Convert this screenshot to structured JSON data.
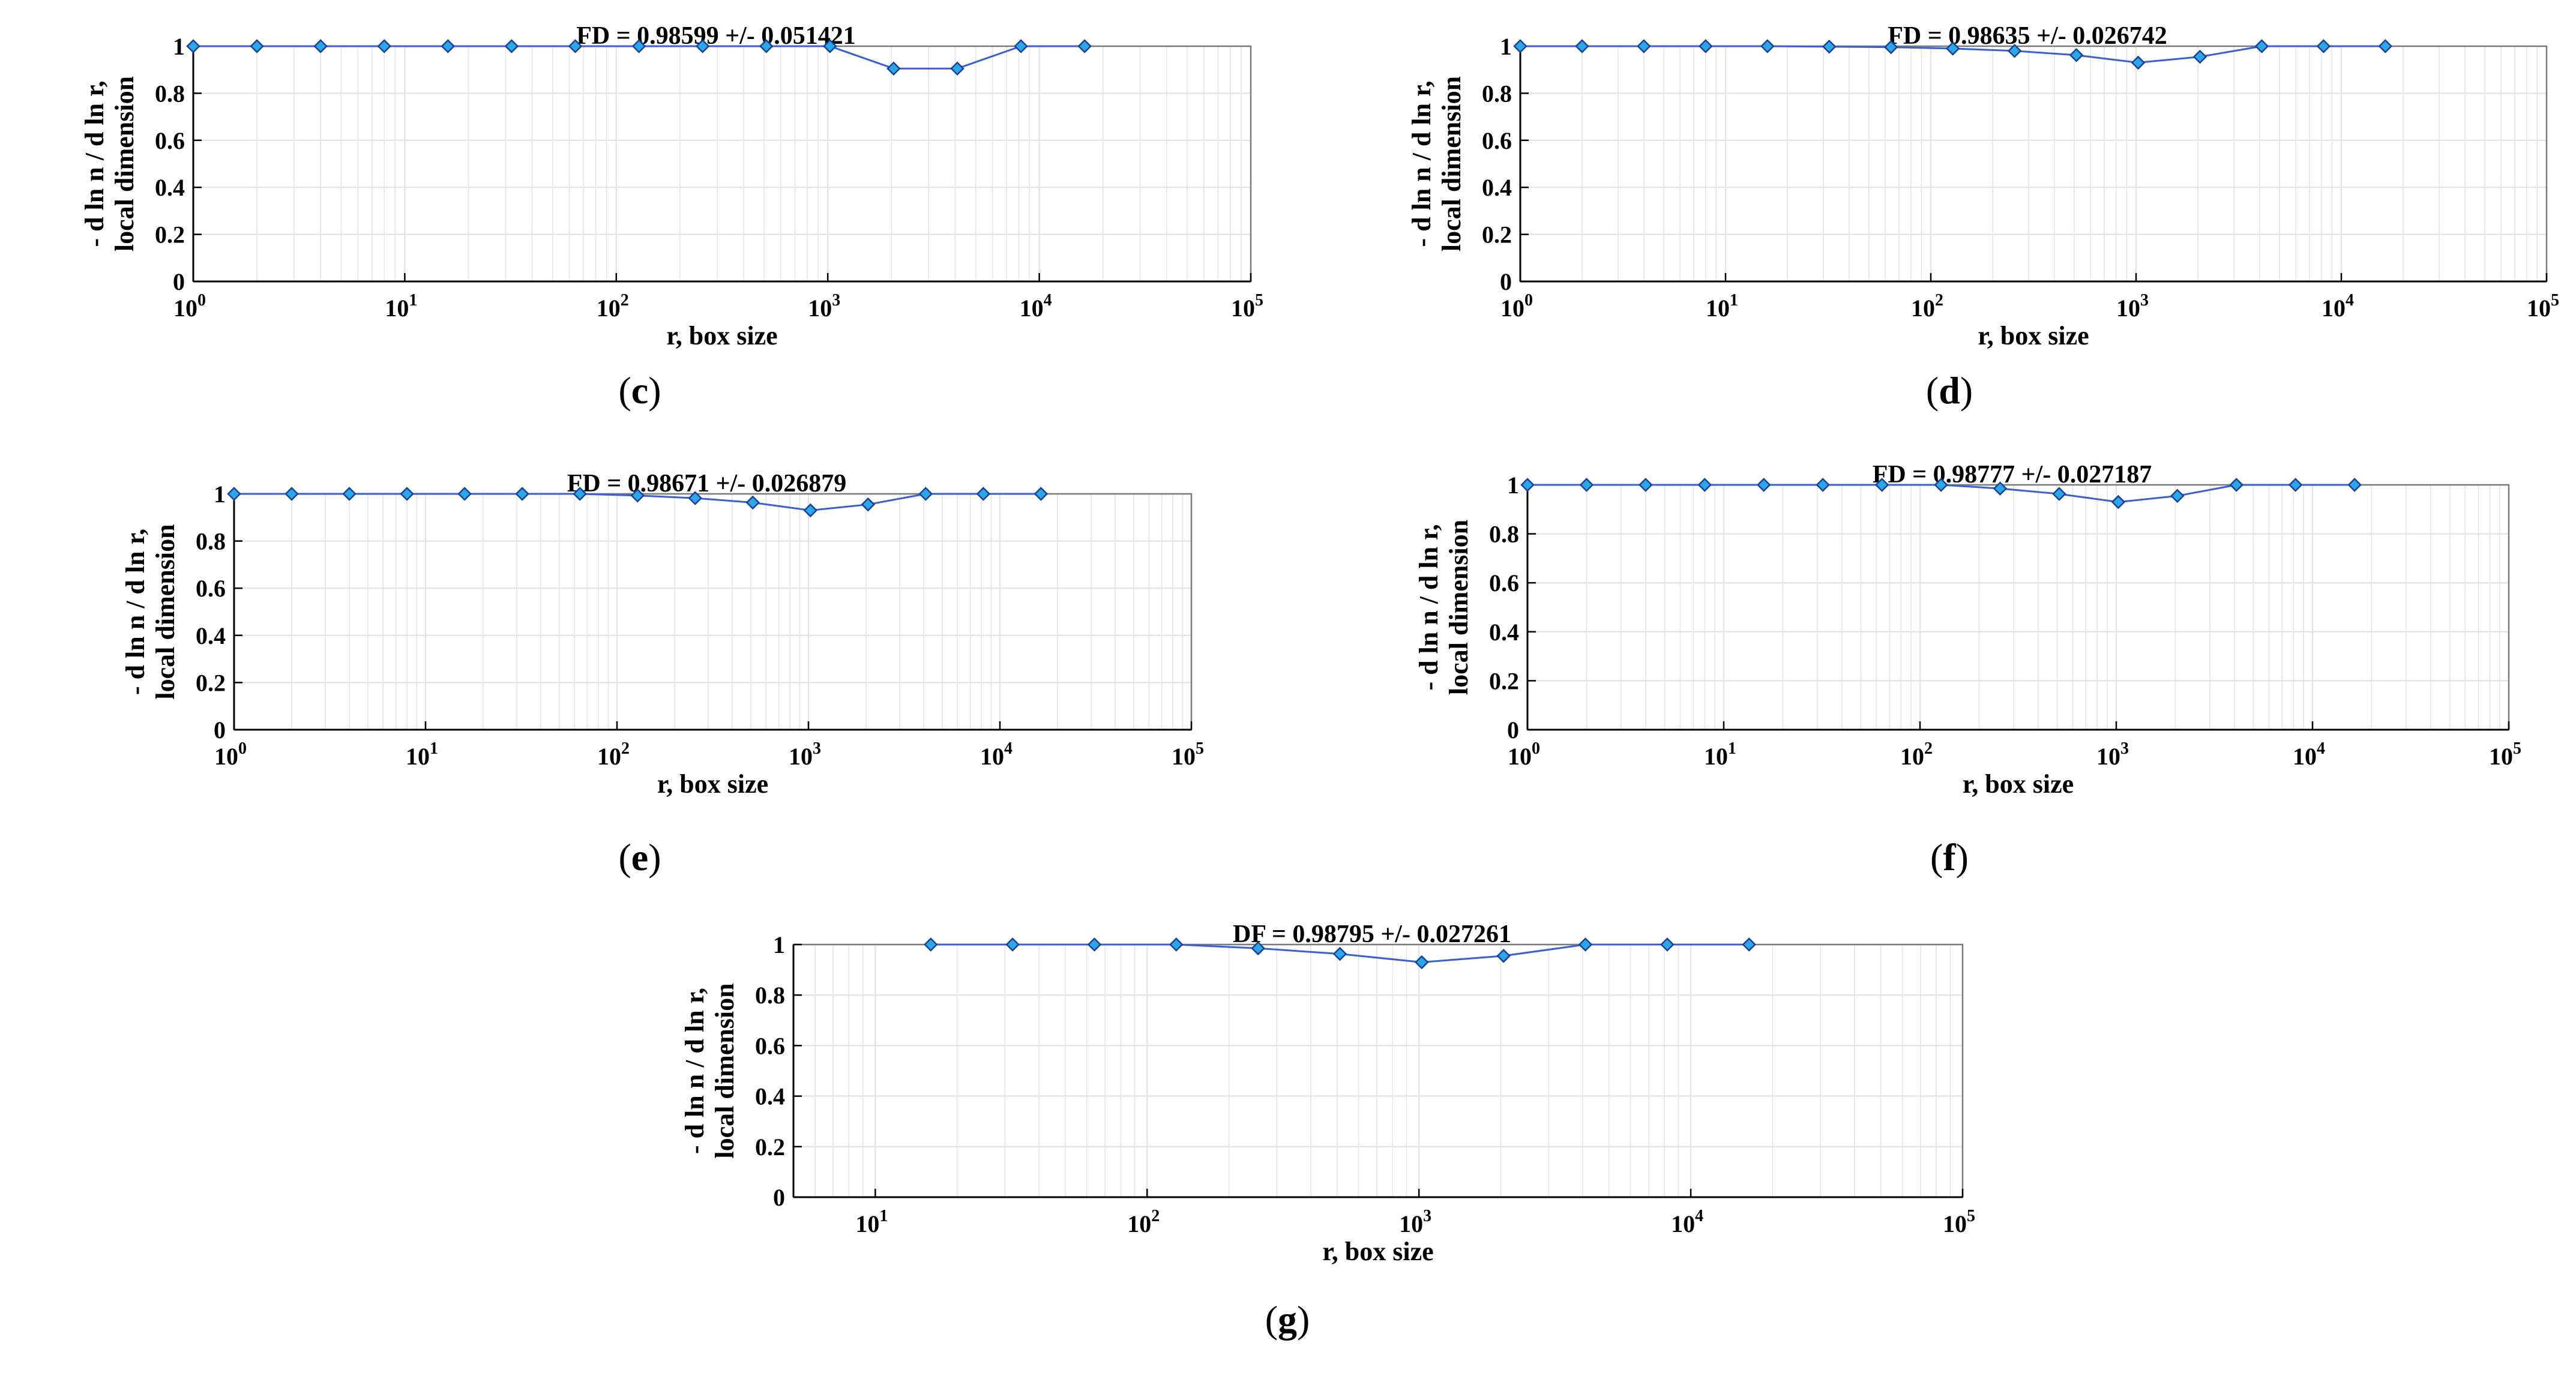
{
  "figure": {
    "panels": [
      {
        "id": "c",
        "caption_letter": "c"
      },
      {
        "id": "d",
        "caption_letter": "d"
      },
      {
        "id": "e",
        "caption_letter": "e"
      },
      {
        "id": "f",
        "caption_letter": "f"
      },
      {
        "id": "g",
        "caption_letter": "g"
      }
    ]
  },
  "colors": {
    "line": "#3a5fd4",
    "marker_fill": "#2aa7e6",
    "marker_edge": "#1a3f9a",
    "grid": "#e4e4e4",
    "axis": "#000000"
  },
  "chart_data": [
    {
      "panel": "c",
      "type": "line",
      "title": "FD = 0.98599 +/- 0.051421",
      "xlabel": "r, box size",
      "ylabel_line1": "- d ln n / d ln r,",
      "ylabel_line2": "local dimension",
      "xscale": "log",
      "xlim": [
        1,
        100000
      ],
      "ylim": [
        0,
        1
      ],
      "grid": true,
      "x_ticks": [
        {
          "base": "10",
          "exp": "0"
        },
        {
          "base": "10",
          "exp": "1"
        },
        {
          "base": "10",
          "exp": "2"
        },
        {
          "base": "10",
          "exp": "3"
        },
        {
          "base": "10",
          "exp": "4"
        },
        {
          "base": "10",
          "exp": "5"
        }
      ],
      "y_ticks": [
        "0",
        "0.2",
        "0.4",
        "0.6",
        "0.8",
        "1"
      ],
      "x": [
        1,
        2,
        4,
        8,
        16,
        32,
        64,
        128,
        256,
        512,
        1024,
        2048,
        4096,
        8192,
        16384
      ],
      "y": [
        1,
        1,
        1,
        1,
        1,
        1,
        1,
        1,
        1,
        1,
        1,
        0.905,
        0.905,
        1,
        1
      ]
    },
    {
      "panel": "d",
      "type": "line",
      "title": "FD = 0.98635 +/- 0.026742",
      "xlabel": "r, box size",
      "ylabel_line1": "- d ln n / d ln r,",
      "ylabel_line2": "local dimension",
      "xscale": "log",
      "xlim": [
        1,
        100000
      ],
      "ylim": [
        0,
        1
      ],
      "grid": true,
      "x_ticks": [
        {
          "base": "10",
          "exp": "0"
        },
        {
          "base": "10",
          "exp": "1"
        },
        {
          "base": "10",
          "exp": "2"
        },
        {
          "base": "10",
          "exp": "3"
        },
        {
          "base": "10",
          "exp": "4"
        },
        {
          "base": "10",
          "exp": "5"
        }
      ],
      "y_ticks": [
        "0",
        "0.2",
        "0.4",
        "0.6",
        "0.8",
        "1"
      ],
      "x": [
        1,
        2,
        4,
        8,
        16,
        32,
        64,
        128,
        256,
        512,
        1024,
        2048,
        4096,
        8192,
        16384
      ],
      "y": [
        1,
        1,
        1,
        1,
        1,
        0.998,
        0.996,
        0.99,
        0.98,
        0.962,
        0.93,
        0.955,
        1,
        1,
        1
      ]
    },
    {
      "panel": "e",
      "type": "line",
      "title": "FD = 0.98671 +/- 0.026879",
      "xlabel": "r, box size",
      "ylabel_line1": "- d ln n / d ln r,",
      "ylabel_line2": "local dimension",
      "xscale": "log",
      "xlim": [
        1,
        100000
      ],
      "ylim": [
        0,
        1
      ],
      "grid": true,
      "x_ticks": [
        {
          "base": "10",
          "exp": "0"
        },
        {
          "base": "10",
          "exp": "1"
        },
        {
          "base": "10",
          "exp": "2"
        },
        {
          "base": "10",
          "exp": "3"
        },
        {
          "base": "10",
          "exp": "4"
        },
        {
          "base": "10",
          "exp": "5"
        }
      ],
      "y_ticks": [
        "0",
        "0.2",
        "0.4",
        "0.6",
        "0.8",
        "1"
      ],
      "x": [
        1,
        2,
        4,
        8,
        16,
        32,
        64,
        128,
        256,
        512,
        1024,
        2048,
        4096,
        8192,
        16384
      ],
      "y": [
        1,
        1,
        1,
        1,
        1,
        1,
        1,
        0.993,
        0.982,
        0.963,
        0.93,
        0.955,
        1,
        1,
        1
      ]
    },
    {
      "panel": "f",
      "type": "line",
      "title": "FD = 0.98777 +/- 0.027187",
      "xlabel": "r, box size",
      "ylabel_line1": "- d ln n / d ln r,",
      "ylabel_line2": "local dimension",
      "xscale": "log",
      "xlim": [
        1,
        100000
      ],
      "ylim": [
        0,
        1
      ],
      "grid": true,
      "x_ticks": [
        {
          "base": "10",
          "exp": "0"
        },
        {
          "base": "10",
          "exp": "1"
        },
        {
          "base": "10",
          "exp": "2"
        },
        {
          "base": "10",
          "exp": "3"
        },
        {
          "base": "10",
          "exp": "4"
        },
        {
          "base": "10",
          "exp": "5"
        }
      ],
      "y_ticks": [
        "0",
        "0.2",
        "0.4",
        "0.6",
        "0.8",
        "1"
      ],
      "x": [
        1,
        2,
        4,
        8,
        16,
        32,
        64,
        128,
        256,
        512,
        1024,
        2048,
        4096,
        8192,
        16384
      ],
      "y": [
        1,
        1,
        1,
        1,
        1,
        1,
        1,
        1,
        0.985,
        0.963,
        0.93,
        0.955,
        1,
        1,
        1
      ]
    },
    {
      "panel": "g",
      "type": "line",
      "title": "DF = 0.98795 +/- 0.027261",
      "xlabel": "r, box size",
      "ylabel_line1": "- d ln n / d ln r,",
      "ylabel_line2": "local dimension",
      "xscale": "log",
      "xlim": [
        5,
        100000
      ],
      "ylim": [
        0,
        1
      ],
      "grid": true,
      "x_ticks": [
        {
          "base": "10",
          "exp": "1"
        },
        {
          "base": "10",
          "exp": "2"
        },
        {
          "base": "10",
          "exp": "3"
        },
        {
          "base": "10",
          "exp": "4"
        },
        {
          "base": "10",
          "exp": "5"
        }
      ],
      "y_ticks": [
        "0",
        "0.2",
        "0.4",
        "0.6",
        "0.8",
        "1"
      ],
      "x": [
        16,
        32,
        64,
        128,
        256,
        512,
        1024,
        2048,
        4096,
        8192,
        16384
      ],
      "y": [
        1,
        1,
        1,
        1,
        0.985,
        0.963,
        0.93,
        0.955,
        1,
        1,
        1
      ]
    }
  ]
}
